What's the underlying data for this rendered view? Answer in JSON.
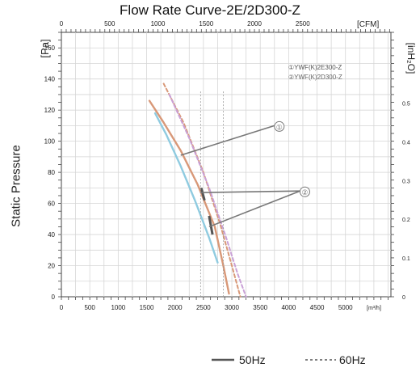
{
  "chart_data": {
    "type": "line",
    "title": "Flow Rate Curve-2E/2D300-Z",
    "ylabel": "Static Pressure",
    "ylabel_unit": "[Pa]",
    "right_unit": "[inH₂O]",
    "top_unit": "[CFM]",
    "x_unit": "[m³/h]",
    "xlim": [
      0,
      5800
    ],
    "ylim": [
      0,
      170
    ],
    "x_ticks": [
      0,
      500,
      1000,
      1500,
      2000,
      2500,
      3000,
      3500,
      4000,
      4500,
      5000
    ],
    "y_ticks": [
      0,
      20,
      40,
      60,
      80,
      100,
      120,
      140,
      160
    ],
    "top_ticks": [
      0,
      500,
      1000,
      1500,
      2000,
      2500
    ],
    "top_tick_labels": [
      "0",
      "500",
      "1000",
      "1500",
      "2000",
      "2500"
    ],
    "right_ticks": [
      0.0,
      0.1,
      0.2,
      0.3,
      0.4,
      0.5
    ],
    "right_tick_labels": [
      "0",
      "0.1",
      "0.2",
      "0.3",
      "0.4",
      "0.5"
    ],
    "grid": true,
    "series": [
      {
        "name": "YWF(K)2E300-Z",
        "marker": "①",
        "frequency": "50Hz",
        "color": "#d89878",
        "dash": "solid",
        "x": [
          1550,
          1800,
          2100,
          2400,
          2700,
          2850,
          2950
        ],
        "y": [
          126,
          112,
          94,
          72,
          45,
          20,
          2
        ]
      },
      {
        "name": "YWF(K)2E300-Z",
        "marker": "①",
        "frequency": "60Hz",
        "color": "#d89878",
        "dash": "dashed",
        "x": [
          1800,
          2150,
          2500,
          2800,
          3000,
          3150
        ],
        "y": [
          137,
          112,
          80,
          46,
          20,
          0
        ]
      },
      {
        "name": "YWF(K)2D300-Z",
        "marker": "②",
        "frequency": "50Hz",
        "color": "#8fcbe0",
        "dash": "solid",
        "x": [
          1650,
          1850,
          2100,
          2350,
          2600,
          2750
        ],
        "y": [
          118,
          104,
          84,
          62,
          38,
          22
        ]
      },
      {
        "name": "YWF(K)2D300-Z",
        "marker": "②",
        "frequency": "60Hz",
        "color": "#c9a0d6",
        "dash": "dashed",
        "x": [
          1900,
          2250,
          2600,
          2900,
          3100,
          3250
        ],
        "y": [
          130,
          102,
          70,
          38,
          15,
          0
        ]
      }
    ],
    "annotations": [
      {
        "label": "①",
        "x": 3750,
        "y": 110,
        "targets": [
          [
            2100,
            91
          ]
        ]
      },
      {
        "label": "②",
        "x": 4200,
        "y": 68,
        "targets": [
          [
            2450,
            67
          ],
          [
            2600,
            45
          ]
        ]
      }
    ],
    "inline_legend": [
      {
        "marker": "①",
        "text": "YWF(K)2E300-Z"
      },
      {
        "marker": "②",
        "text": "YWF(K)2D300-Z"
      }
    ],
    "bottom_legend": [
      {
        "text": "50Hz",
        "dash": "solid"
      },
      {
        "text": "60Hz",
        "dash": "dashed"
      }
    ]
  },
  "colors": {
    "grid": "#d6d6d6",
    "axis": "#444444",
    "leader": "#777777",
    "text": "#222222"
  }
}
